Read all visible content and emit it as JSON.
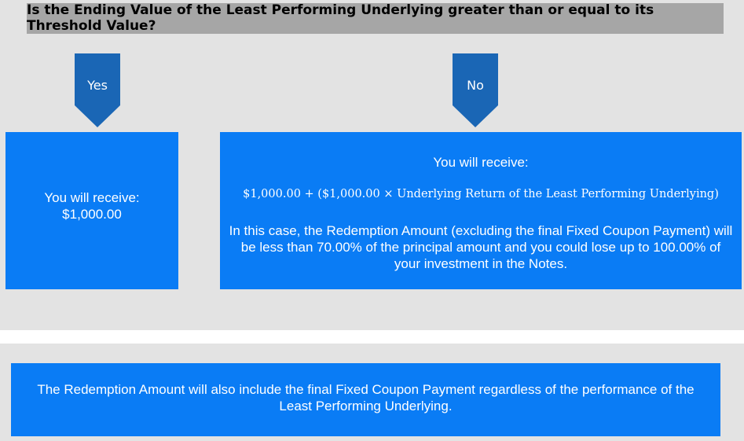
{
  "question": "Is the Ending Value of the Least Performing Underlying greater than or equal to its Threshold Value?",
  "branches": {
    "yes": {
      "label": "Yes",
      "receive_line1": "You will receive:",
      "receive_line2": "$1,000.00"
    },
    "no": {
      "label": "No",
      "receive": "You will receive:",
      "formula": "$1,000.00 + ($1,000.00 × Underlying Return of the Least Performing Underlying)",
      "note": "In this case, the Redemption Amount (excluding the final Fixed Coupon Payment) will be less than 70.00% of the principal amount and you could lose up to 100.00% of your investment in the Notes."
    }
  },
  "footer": "The Redemption Amount will also include the final Fixed Coupon Payment regardless of the performance of the Least Performing Underlying.",
  "colors": {
    "box_blue": "#0a7cf5",
    "arrow_blue": "#1a66b5",
    "question_gray": "#a6a6a6",
    "panel_gray": "#e3e3e3"
  }
}
